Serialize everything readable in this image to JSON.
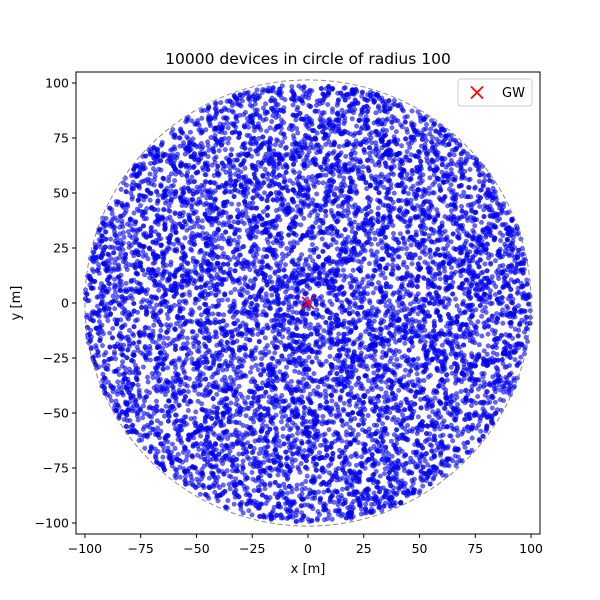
{
  "chart_data": {
    "type": "scatter",
    "title": "10000 devices in circle of radius 100",
    "xlabel": "x [m]",
    "ylabel": "y [m]",
    "xlim": [
      -104,
      104
    ],
    "ylim": [
      -105,
      105
    ],
    "xticks": [
      -100,
      -75,
      -50,
      -25,
      0,
      25,
      50,
      75,
      100
    ],
    "yticks": [
      -100,
      -75,
      -50,
      -25,
      0,
      25,
      50,
      75,
      100
    ],
    "xtick_labels": [
      "−100",
      "−75",
      "−50",
      "−25",
      "0",
      "25",
      "50",
      "75",
      "100"
    ],
    "ytick_labels": [
      "−100",
      "−75",
      "−50",
      "−25",
      "0",
      "25",
      "50",
      "75",
      "100"
    ],
    "grid": false,
    "legend_position": "top-right",
    "boundary_circle": {
      "center": [
        0,
        0
      ],
      "radius": 100,
      "style": "dashed",
      "color": "#888888"
    },
    "series": [
      {
        "kind": "devices",
        "count": 10000,
        "distribution": "uniform in disk",
        "center": [
          0,
          0
        ],
        "radius": 100,
        "color": "#0000ff",
        "alpha": 0.6,
        "marker": "circle"
      },
      {
        "name": "GW",
        "kind": "gateway",
        "points": [
          [
            0,
            0
          ]
        ],
        "color": "#ff0000",
        "marker": "x"
      }
    ]
  }
}
